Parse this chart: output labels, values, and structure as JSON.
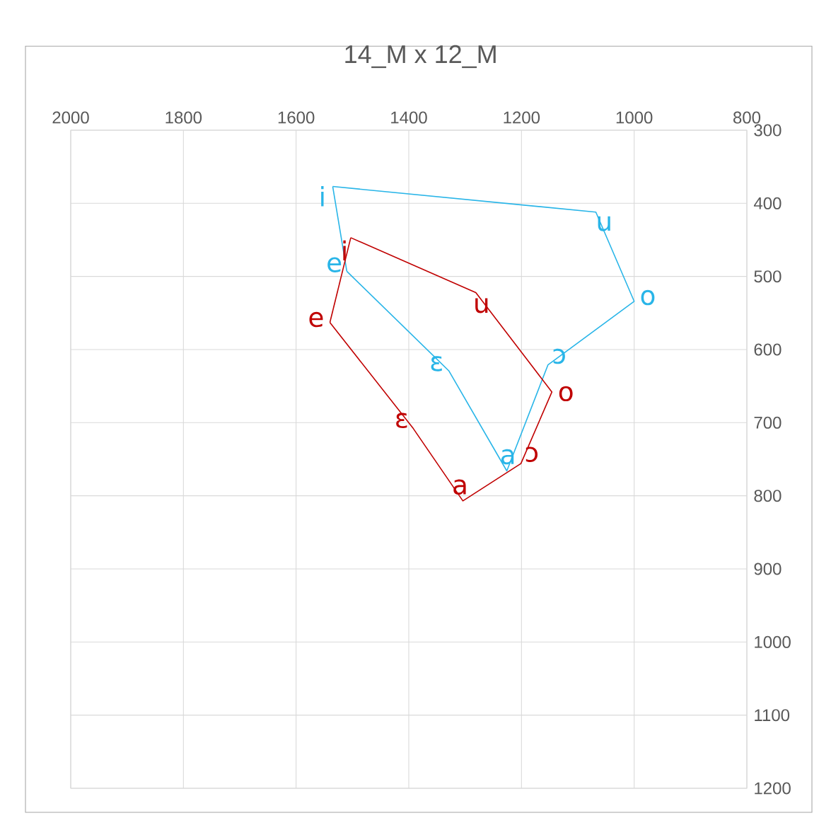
{
  "chart_data": {
    "type": "line",
    "title": "14_M x 12_M",
    "xlim": [
      2000,
      800
    ],
    "xticks": [
      2000,
      1800,
      1600,
      1400,
      1200,
      1000,
      800
    ],
    "ylim": [
      1200,
      300
    ],
    "yticks": [
      300,
      400,
      500,
      600,
      700,
      800,
      900,
      1000,
      1100,
      1200
    ],
    "grid": true,
    "marker": "none",
    "line_style": "solid",
    "series": [
      {
        "color": "#29b5e8",
        "x": [
          1535,
          1068,
          1000,
          1153,
          1226,
          1329,
          1510
        ],
        "values": [
          377,
          412,
          534,
          621,
          766,
          629,
          493
        ],
        "value_labels": [
          "i",
          "u",
          "o",
          "ɔ",
          "a",
          "ɛ",
          "e"
        ]
      },
      {
        "color": "#c00000",
        "x": [
          1503,
          1281,
          1146,
          1201,
          1304,
          1392,
          1540
        ],
        "values": [
          447,
          522,
          658,
          756,
          807,
          708,
          563
        ],
        "value_labels": [
          "i",
          "u",
          "o",
          "ɔ",
          "a",
          "ɛ",
          "e"
        ]
      }
    ]
  }
}
